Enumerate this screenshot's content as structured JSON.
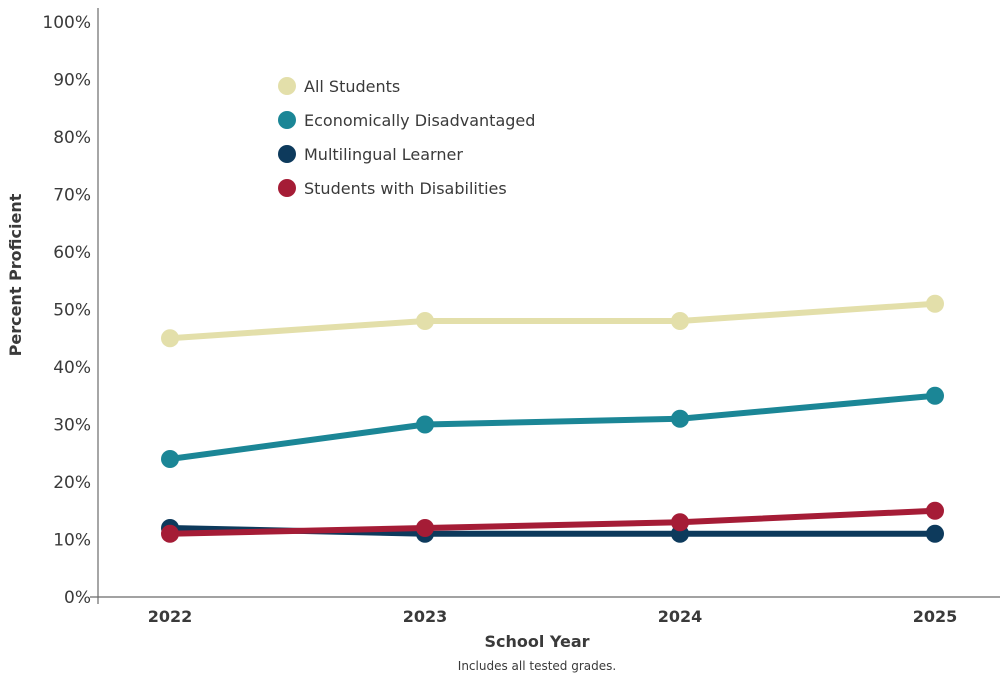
{
  "chart_data": {
    "type": "line",
    "categories": [
      "2022",
      "2023",
      "2024",
      "2025"
    ],
    "series": [
      {
        "name": "All Students",
        "color": "#e3dfaa",
        "values": [
          45,
          48,
          48,
          51
        ]
      },
      {
        "name": "Economically Disadvantaged",
        "color": "#1b8696",
        "values": [
          24,
          30,
          31,
          35
        ]
      },
      {
        "name": "Multilingual Learner",
        "color": "#0d3a5c",
        "values": [
          12,
          11,
          11,
          11
        ]
      },
      {
        "name": "Students with Disabilities",
        "color": "#a51c36",
        "values": [
          11,
          12,
          13,
          15
        ]
      }
    ],
    "title": "",
    "xlabel": "School Year",
    "ylabel": "Percent Proficient",
    "note": "Includes all tested grades.",
    "ylim": [
      0,
      100
    ],
    "y_ticks": [
      "0%",
      "10%",
      "20%",
      "30%",
      "40%",
      "50%",
      "60%",
      "70%",
      "80%",
      "90%",
      "100%"
    ],
    "legend_position": "top-left",
    "grid": false
  }
}
